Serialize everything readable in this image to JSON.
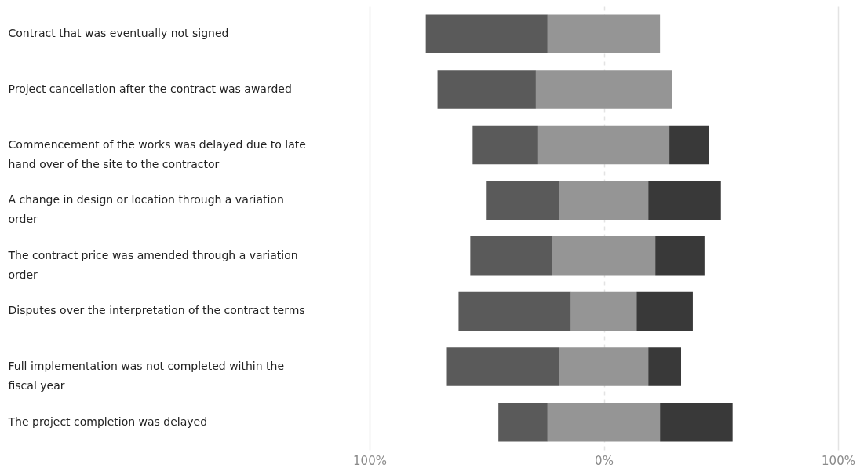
{
  "chart_data": {
    "type": "bar",
    "orientation": "horizontal",
    "categories": [
      "Contract that was eventually not signed",
      "Project cancellation after the contract was awarded",
      "Commencement of the works was delayed due to late hand over of the site to the contractor",
      "A change in design or location through a variation order",
      "The contract price was amended through a variation order",
      "Disputes over the interpretation of the contract terms",
      "Full implementation was not completed within the fiscal year",
      "The project completion was delayed"
    ],
    "series": [
      {
        "color": "#5a5a5a",
        "values": [
          52,
          42,
          28,
          31,
          35,
          48,
          48,
          21
        ],
        "base": [
          -76,
          -71,
          -56,
          -50,
          -57,
          -62,
          -67,
          -45
        ]
      },
      {
        "color": "#959595",
        "values": [
          48,
          58,
          56,
          38,
          44,
          28,
          38,
          48
        ],
        "base": [
          -24,
          -29,
          -28,
          -19,
          -22,
          -14,
          -19,
          -24
        ]
      },
      {
        "color": "#393939",
        "values": [
          null,
          null,
          17,
          31,
          21,
          24,
          14,
          31
        ],
        "base": [
          null,
          null,
          28,
          19,
          22,
          14,
          19,
          24
        ]
      }
    ],
    "xlim": [
      -100,
      100
    ],
    "xticks": [
      {
        "value": -100,
        "label": "100%"
      },
      {
        "value": 0,
        "label": "0%"
      },
      {
        "value": 100,
        "label": "100%"
      }
    ],
    "grid": "x"
  }
}
